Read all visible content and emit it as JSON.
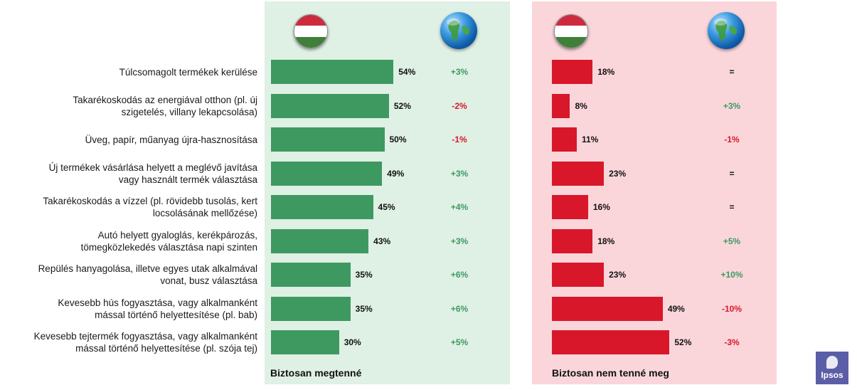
{
  "chart_data": {
    "type": "bar",
    "categories": [
      "Túlcsomagolt termékek kerülése",
      "Takarékoskodás az energiával otthon (pl. új szigetelés, villany lekapcsolása)",
      "Üveg, papír, műanyag újra-hasznosítása",
      "Új termékek vásárlása helyett a meglévő javítása vagy használt termék választása",
      "Takarékoskodás a vízzel (pl. rövidebb tusolás, kert locsolásának mellőzése)",
      "Autó helyett gyaloglás, kerékpározás, tömegközlekedés választása napi szinten",
      "Repülés hanyagolása, illetve egyes utak alkalmával vonat, busz választása",
      "Kevesebb hús fogyasztása, vagy alkalmanként mással történő helyettesítése (pl. bab)",
      "Kevesebb tejtermék fogyasztása, vagy alkalmanként mással történő helyettesítése (pl. szója tej)"
    ],
    "series": [
      {
        "name": "Biztosan megtenné",
        "values": [
          54,
          52,
          50,
          49,
          45,
          43,
          35,
          35,
          30
        ],
        "labels": [
          "54%",
          "52%",
          "50%",
          "49%",
          "45%",
          "43%",
          "35%",
          "35%",
          "30%"
        ],
        "diff": [
          "+3%",
          "-2%",
          "-1%",
          "+3%",
          "+4%",
          "+3%",
          "+6%",
          "+6%",
          "+5%"
        ],
        "color": "#3e9961"
      },
      {
        "name": "Biztosan nem tenné meg",
        "values": [
          18,
          8,
          11,
          23,
          16,
          18,
          23,
          49,
          52
        ],
        "labels": [
          "18%",
          "8%",
          "11%",
          "23%",
          "16%",
          "18%",
          "23%",
          "49%",
          "52%"
        ],
        "diff": [
          "=",
          "+3%",
          "-1%",
          "=",
          "=",
          "+5%",
          "+10%",
          "-10%",
          "-3%"
        ],
        "color": "#d9172a"
      }
    ],
    "ylim": [
      0,
      100
    ],
    "grid": false
  },
  "row_labels": [
    [
      "Túlcsomagolt termékek kerülése"
    ],
    [
      "Takarékoskodás az energiával otthon (pl. új",
      "szigetelés, villany lekapcsolása)"
    ],
    [
      "Üveg, papír, műanyag újra-hasznosítása"
    ],
    [
      "Új termékek vásárlása helyett a meglévő javítása",
      "vagy használt termék választása"
    ],
    [
      "Takarékoskodás a vízzel (pl. rövidebb tusolás, kert",
      "locsolásának mellőzése)"
    ],
    [
      "Autó helyett gyaloglás, kerékpározás,",
      "tömegközlekedés választása napi szinten"
    ],
    [
      "Repülés hanyagolása, illetve egyes utak alkalmával",
      "vonat, busz választása"
    ],
    [
      "Kevesebb hús fogyasztása, vagy alkalmanként",
      "mással történő helyettesítése (pl. bab)"
    ],
    [
      "Kevesebb tejtermék fogyasztása, vagy alkalmanként",
      "mással történő helyettesítése (pl. szója tej)"
    ]
  ],
  "icons": {
    "flag": "hungary-flag-icon",
    "globe": "globe-icon"
  },
  "colors": {
    "positive_text": "#3e9961",
    "negative_text": "#d9172a",
    "neutral_text": "#111111",
    "flag_red": "#cd2a3e",
    "flag_white": "#ffffff",
    "flag_green": "#3f7f3a"
  },
  "logo": {
    "text": "Ipsos"
  }
}
